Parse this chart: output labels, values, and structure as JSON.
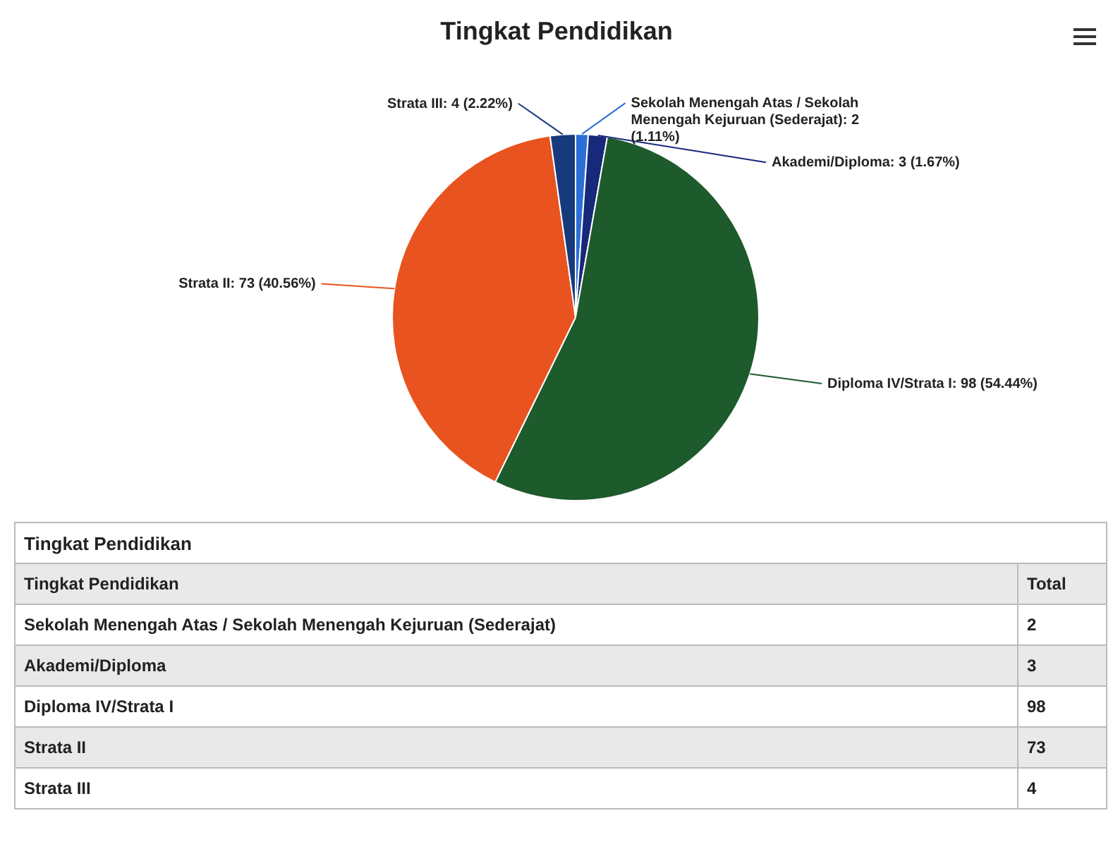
{
  "chart_data": [
    {
      "type": "pie",
      "title": "Tingkat Pendidikan",
      "categories": [
        "Sekolah Menengah Atas / Sekolah Menengah Kejuruan (Sederajat)",
        "Akademi/Diploma",
        "Diploma IV/Strata I",
        "Strata II",
        "Strata III"
      ],
      "values": [
        2,
        3,
        98,
        73,
        4
      ],
      "value_labels": [
        ": 2 (1.11%)",
        ": 3 (1.67%)",
        ": 98 (54.44%)",
        ": 73 (40.56%)",
        ": 4 (2.22%)"
      ],
      "colors": [
        "#2a6fd6",
        "#16297a",
        "#1d5a2c",
        "#e8531f",
        "#163a7c"
      ]
    },
    {
      "type": "other",
      "title": "Tingkat Pendidikan",
      "xlabel": "Tingkat Pendidikan",
      "ylabel": "Total",
      "categories": [
        "Sekolah Menengah Atas / Sekolah Menengah Kejuruan (Sederajat)",
        "Akademi/Diploma",
        "Diploma IV/Strata I",
        "Strata II",
        "Strata III"
      ],
      "values": [
        2,
        3,
        98,
        73,
        4
      ],
      "data_labels": true
    }
  ]
}
